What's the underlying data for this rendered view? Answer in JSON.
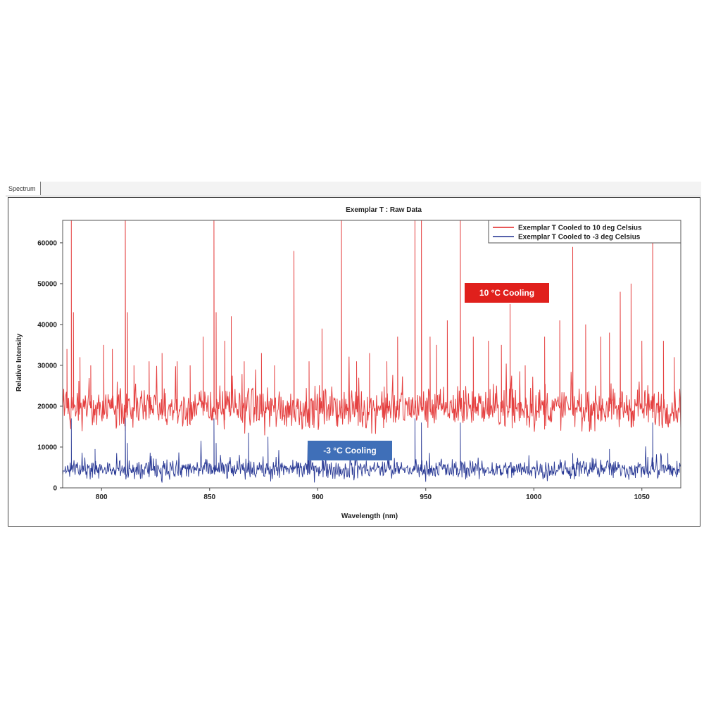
{
  "tab": {
    "label": "Spectrum"
  },
  "chart_data": {
    "type": "line",
    "title": "Exemplar T : Raw Data",
    "xlabel": "Wavelength (nm)",
    "ylabel": "Relative Intensity",
    "xlim": [
      782,
      1068
    ],
    "ylim": [
      0,
      65500
    ],
    "x_ticks": [
      800,
      850,
      900,
      950,
      1000,
      1050
    ],
    "y_ticks": [
      0,
      10000,
      20000,
      30000,
      40000,
      50000,
      60000
    ],
    "grid": false,
    "legend_position": "top-right",
    "series": [
      {
        "name": "Exemplar T Cooled to 10 deg Celsius",
        "color": "#e02020",
        "baseline": 19500,
        "noise": 5500,
        "peaks": [
          [
            784,
            34000
          ],
          [
            786,
            65500
          ],
          [
            787,
            43000
          ],
          [
            790,
            32000
          ],
          [
            795,
            30000
          ],
          [
            801,
            35000
          ],
          [
            805,
            34000
          ],
          [
            811,
            65500
          ],
          [
            812,
            43000
          ],
          [
            815,
            30000
          ],
          [
            822,
            31000
          ],
          [
            828,
            33000
          ],
          [
            835,
            31000
          ],
          [
            841,
            30000
          ],
          [
            847,
            37000
          ],
          [
            852,
            65500
          ],
          [
            853,
            43000
          ],
          [
            857,
            36000
          ],
          [
            860,
            42000
          ],
          [
            866,
            31000
          ],
          [
            874,
            33000
          ],
          [
            880,
            30000
          ],
          [
            889,
            58000
          ],
          [
            896,
            31000
          ],
          [
            902,
            39000
          ],
          [
            911,
            65500
          ],
          [
            918,
            31000
          ],
          [
            924,
            33000
          ],
          [
            932,
            31000
          ],
          [
            937,
            37000
          ],
          [
            945,
            65500
          ],
          [
            948,
            65500
          ],
          [
            952,
            37000
          ],
          [
            955,
            35000
          ],
          [
            960,
            41000
          ],
          [
            966,
            65500
          ],
          [
            972,
            37000
          ],
          [
            979,
            36000
          ],
          [
            985,
            35000
          ],
          [
            989,
            45000
          ],
          [
            996,
            30000
          ],
          [
            1005,
            37000
          ],
          [
            1012,
            41000
          ],
          [
            1018,
            59000
          ],
          [
            1024,
            40000
          ],
          [
            1031,
            37000
          ],
          [
            1035,
            38000
          ],
          [
            1040,
            48000
          ],
          [
            1045,
            50000
          ],
          [
            1050,
            36000
          ],
          [
            1055,
            62000
          ],
          [
            1060,
            36000
          ],
          [
            1065,
            32000
          ]
        ]
      },
      {
        "name": "Exemplar T Cooled to -3 deg Celsius",
        "color": "#1f2f8f",
        "baseline": 4500,
        "noise": 2600,
        "peaks": [
          [
            786,
            17000
          ],
          [
            797,
            9500
          ],
          [
            811,
            17000
          ],
          [
            812,
            11000
          ],
          [
            852,
            17000
          ],
          [
            853,
            11000
          ],
          [
            868,
            13500
          ],
          [
            877,
            12500
          ],
          [
            945,
            17000
          ],
          [
            948,
            16000
          ],
          [
            966,
            16000
          ],
          [
            1018,
            8500
          ],
          [
            1035,
            9500
          ],
          [
            1055,
            16000
          ],
          [
            1062,
            8500
          ]
        ]
      }
    ],
    "annotations": [
      {
        "text": "10 °C Cooling",
        "color": "#e0201c"
      },
      {
        "text": "-3 °C Cooling",
        "color": "#3f6fb8"
      }
    ]
  }
}
